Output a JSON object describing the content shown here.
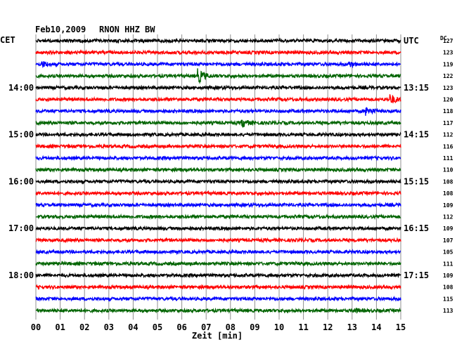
{
  "chart_data": {
    "type": "line",
    "title": "Feb10,2009",
    "station": "RNON HHZ BW",
    "left_timezone": "CET",
    "right_timezone": "UTC",
    "dc_label": "DC",
    "xlabel": "Zeit [min]",
    "xlim": [
      0,
      15
    ],
    "x_ticks": [
      "00",
      "01",
      "02",
      "03",
      "04",
      "05",
      "06",
      "07",
      "08",
      "09",
      "10",
      "11",
      "12",
      "13",
      "14",
      "15"
    ],
    "grid": true,
    "trace_colors": [
      "#000000",
      "#ff0000",
      "#0000ff",
      "#006400"
    ],
    "left_hour_labels": [
      {
        "row": 4,
        "text": "14:00"
      },
      {
        "row": 8,
        "text": "15:00"
      },
      {
        "row": 12,
        "text": "16:00"
      },
      {
        "row": 16,
        "text": "17:00"
      },
      {
        "row": 20,
        "text": "18:00"
      }
    ],
    "right_hour_labels": [
      {
        "row": 0,
        "text": "UTC"
      },
      {
        "row": 4,
        "text": "13:15"
      },
      {
        "row": 8,
        "text": "14:15"
      },
      {
        "row": 12,
        "text": "15:15"
      },
      {
        "row": 16,
        "text": "16:15"
      },
      {
        "row": 20,
        "text": "17:15"
      }
    ],
    "dc_offsets": [
      "127",
      "123",
      "119",
      "122",
      "123",
      "120",
      "118",
      "117",
      "112",
      "116",
      "111",
      "110",
      "108",
      "108",
      "109",
      "112",
      "109",
      "107",
      "105",
      "111",
      "109",
      "108",
      "115",
      "113"
    ],
    "events": [
      {
        "row": 3,
        "minute": 6.7,
        "strength": 9
      },
      {
        "row": 5,
        "minute": 14.6,
        "strength": 6
      },
      {
        "row": 6,
        "minute": 13.6,
        "strength": 5
      },
      {
        "row": 7,
        "minute": 8.5,
        "strength": 5
      },
      {
        "row": 2,
        "minute": 0.3,
        "strength": 3
      },
      {
        "row": 2,
        "minute": 12.9,
        "strength": 3
      },
      {
        "row": 23,
        "minute": 13.1,
        "strength": 2
      }
    ]
  }
}
